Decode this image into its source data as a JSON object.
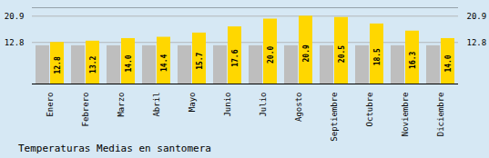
{
  "chart_data": {
    "type": "bar",
    "title": "Temperaturas Medias en santomera",
    "categories": [
      "Enero",
      "Febrero",
      "Marzo",
      "Abril",
      "Mayo",
      "Junio",
      "Julio",
      "Agosto",
      "Septiembre",
      "Octubre",
      "Noviembre",
      "Diciembre"
    ],
    "series": [
      {
        "color": "#BEBEBE",
        "values": [
          11.8,
          11.8,
          11.8,
          11.8,
          11.8,
          11.8,
          11.8,
          11.8,
          11.8,
          11.8,
          11.8,
          11.8
        ]
      },
      {
        "color": "#FFD700",
        "values": [
          12.8,
          13.2,
          14.0,
          14.4,
          15.7,
          17.6,
          20.0,
          20.9,
          20.5,
          18.5,
          16.3,
          14.0
        ],
        "data_labels": true,
        "value_labels": [
          "12.8",
          "13.2",
          "14.0",
          "14.4",
          "15.7",
          "17.6",
          "20.0",
          "20.9",
          "20.5",
          "18.5",
          "16.3",
          "14.0"
        ]
      }
    ],
    "ylim": [
      0,
      23.5
    ],
    "yticks": [
      12.8,
      20.9
    ],
    "grid": true
  }
}
